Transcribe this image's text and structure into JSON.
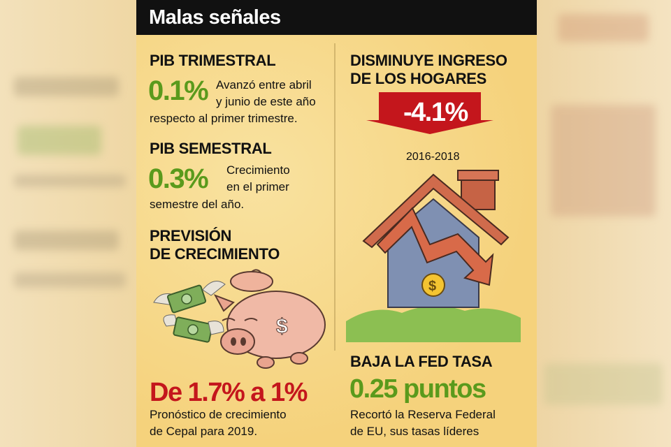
{
  "title": "Malas señales",
  "pib_trimestral": {
    "heading": "PIB TRIMESTRAL",
    "value": "0.1%",
    "desc_line1": "Avanzó entre abril",
    "desc_line2": "y junio de este año",
    "desc_line3": "respecto al primer trimestre."
  },
  "pib_semestral": {
    "heading": "PIB SEMESTRAL",
    "value": "0.3%",
    "desc_line1": "Crecimiento",
    "desc_line2": "en el primer",
    "desc_line3": "semestre del año."
  },
  "prevision": {
    "heading_line1": "PREVISIÓN",
    "heading_line2": "DE CRECIMIENTO",
    "value": "De 1.7% a 1%",
    "desc_line1": "Pronóstico de crecimiento",
    "desc_line2": "de Cepal para 2019."
  },
  "ingreso": {
    "heading_line1": "DISMINUYE INGRESO",
    "heading_line2": "DE LOS HOGARES",
    "value": "-4.1%",
    "period": "2016-2018"
  },
  "fed": {
    "heading": "BAJA LA FED TASA",
    "value": "0.25 puntos",
    "desc_line1": "Recortó la Reserva Federal",
    "desc_line2": "de EU, sus tasas líderes"
  },
  "colors": {
    "green": "#5a9a1c",
    "red": "#c4161c",
    "panel": "#f7d98a",
    "title_bar": "#111111"
  },
  "icons": [
    "flying-money-icon",
    "piggy-bank-icon",
    "down-arrow-icon",
    "house-icon",
    "coin-icon"
  ]
}
